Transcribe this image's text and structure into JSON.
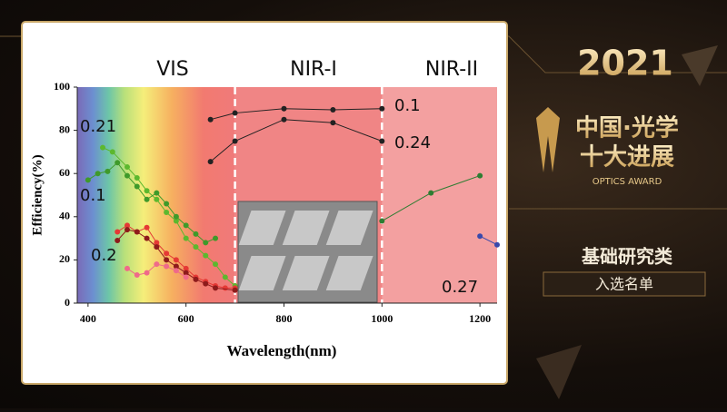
{
  "chart_data": {
    "type": "line",
    "x_label": "Wavelength(nm)",
    "y_label": "Efficiency(%)",
    "xlim": [
      378,
      1235
    ],
    "ylim": [
      0,
      100
    ],
    "xticks": [
      400,
      600,
      800,
      1000,
      1200
    ],
    "yticks": [
      0,
      20,
      40,
      60,
      80,
      100
    ],
    "regions": [
      "VIS",
      "NIR-I",
      "NIR-II"
    ],
    "region_bounds": [
      700,
      1000
    ],
    "annotations": [
      "0.21",
      "0.1",
      "0.2",
      "0.1",
      "0.24",
      "0.27"
    ],
    "series": [
      {
        "color": "#222222",
        "x": [
          650,
          700,
          800,
          900,
          1000
        ],
        "values": [
          85,
          88,
          90,
          89.5,
          90
        ]
      },
      {
        "color": "#222222",
        "x": [
          650,
          700,
          800,
          900,
          1000
        ],
        "values": [
          65.5,
          75,
          85,
          83.5,
          75
        ]
      },
      {
        "color": "#2e7d32",
        "x": [
          1000,
          1100,
          1200
        ],
        "values": [
          38,
          51,
          59
        ]
      },
      {
        "color": "#5cb82e",
        "x": [
          430,
          450,
          480,
          500,
          520,
          540,
          560,
          580,
          600,
          620,
          640,
          660,
          680,
          700
        ],
        "values": [
          72,
          70,
          63,
          58,
          52,
          48,
          42,
          38,
          30,
          26,
          22,
          18,
          12,
          8
        ]
      },
      {
        "color": "#3f9a2a",
        "x": [
          400,
          420,
          440,
          460,
          480,
          500,
          520,
          540,
          560,
          580,
          600,
          620,
          640,
          660
        ],
        "values": [
          57,
          60,
          61,
          65,
          59,
          54,
          48,
          51,
          46,
          40,
          36,
          32,
          28,
          30
        ]
      },
      {
        "color": "#e53935",
        "x": [
          460,
          480,
          500,
          520,
          540,
          560,
          580,
          600,
          620,
          640,
          660,
          680,
          700
        ],
        "values": [
          33,
          36,
          33,
          35,
          28,
          23,
          20,
          16,
          12,
          10,
          8,
          7,
          7
        ]
      },
      {
        "color": "#8e1b1b",
        "x": [
          460,
          480,
          500,
          520,
          540,
          560,
          580,
          600,
          620,
          640,
          660,
          700
        ],
        "values": [
          29,
          34,
          33,
          30,
          26,
          20,
          17,
          14,
          11,
          9,
          7,
          6
        ]
      },
      {
        "color": "#ef6a8a",
        "x": [
          480,
          500,
          520,
          540,
          560,
          580,
          600
        ],
        "values": [
          16,
          13,
          14,
          18,
          17,
          15,
          12
        ]
      },
      {
        "color": "#3949ab",
        "x": [
          1200,
          1235
        ],
        "values": [
          31,
          27
        ]
      }
    ]
  },
  "banner": {
    "year": "2021",
    "title_1": "中国·光学",
    "title_2": "十大进展",
    "subtitle": "OPTICS AWARD",
    "category": "基础研究类",
    "status": "入选名单"
  }
}
